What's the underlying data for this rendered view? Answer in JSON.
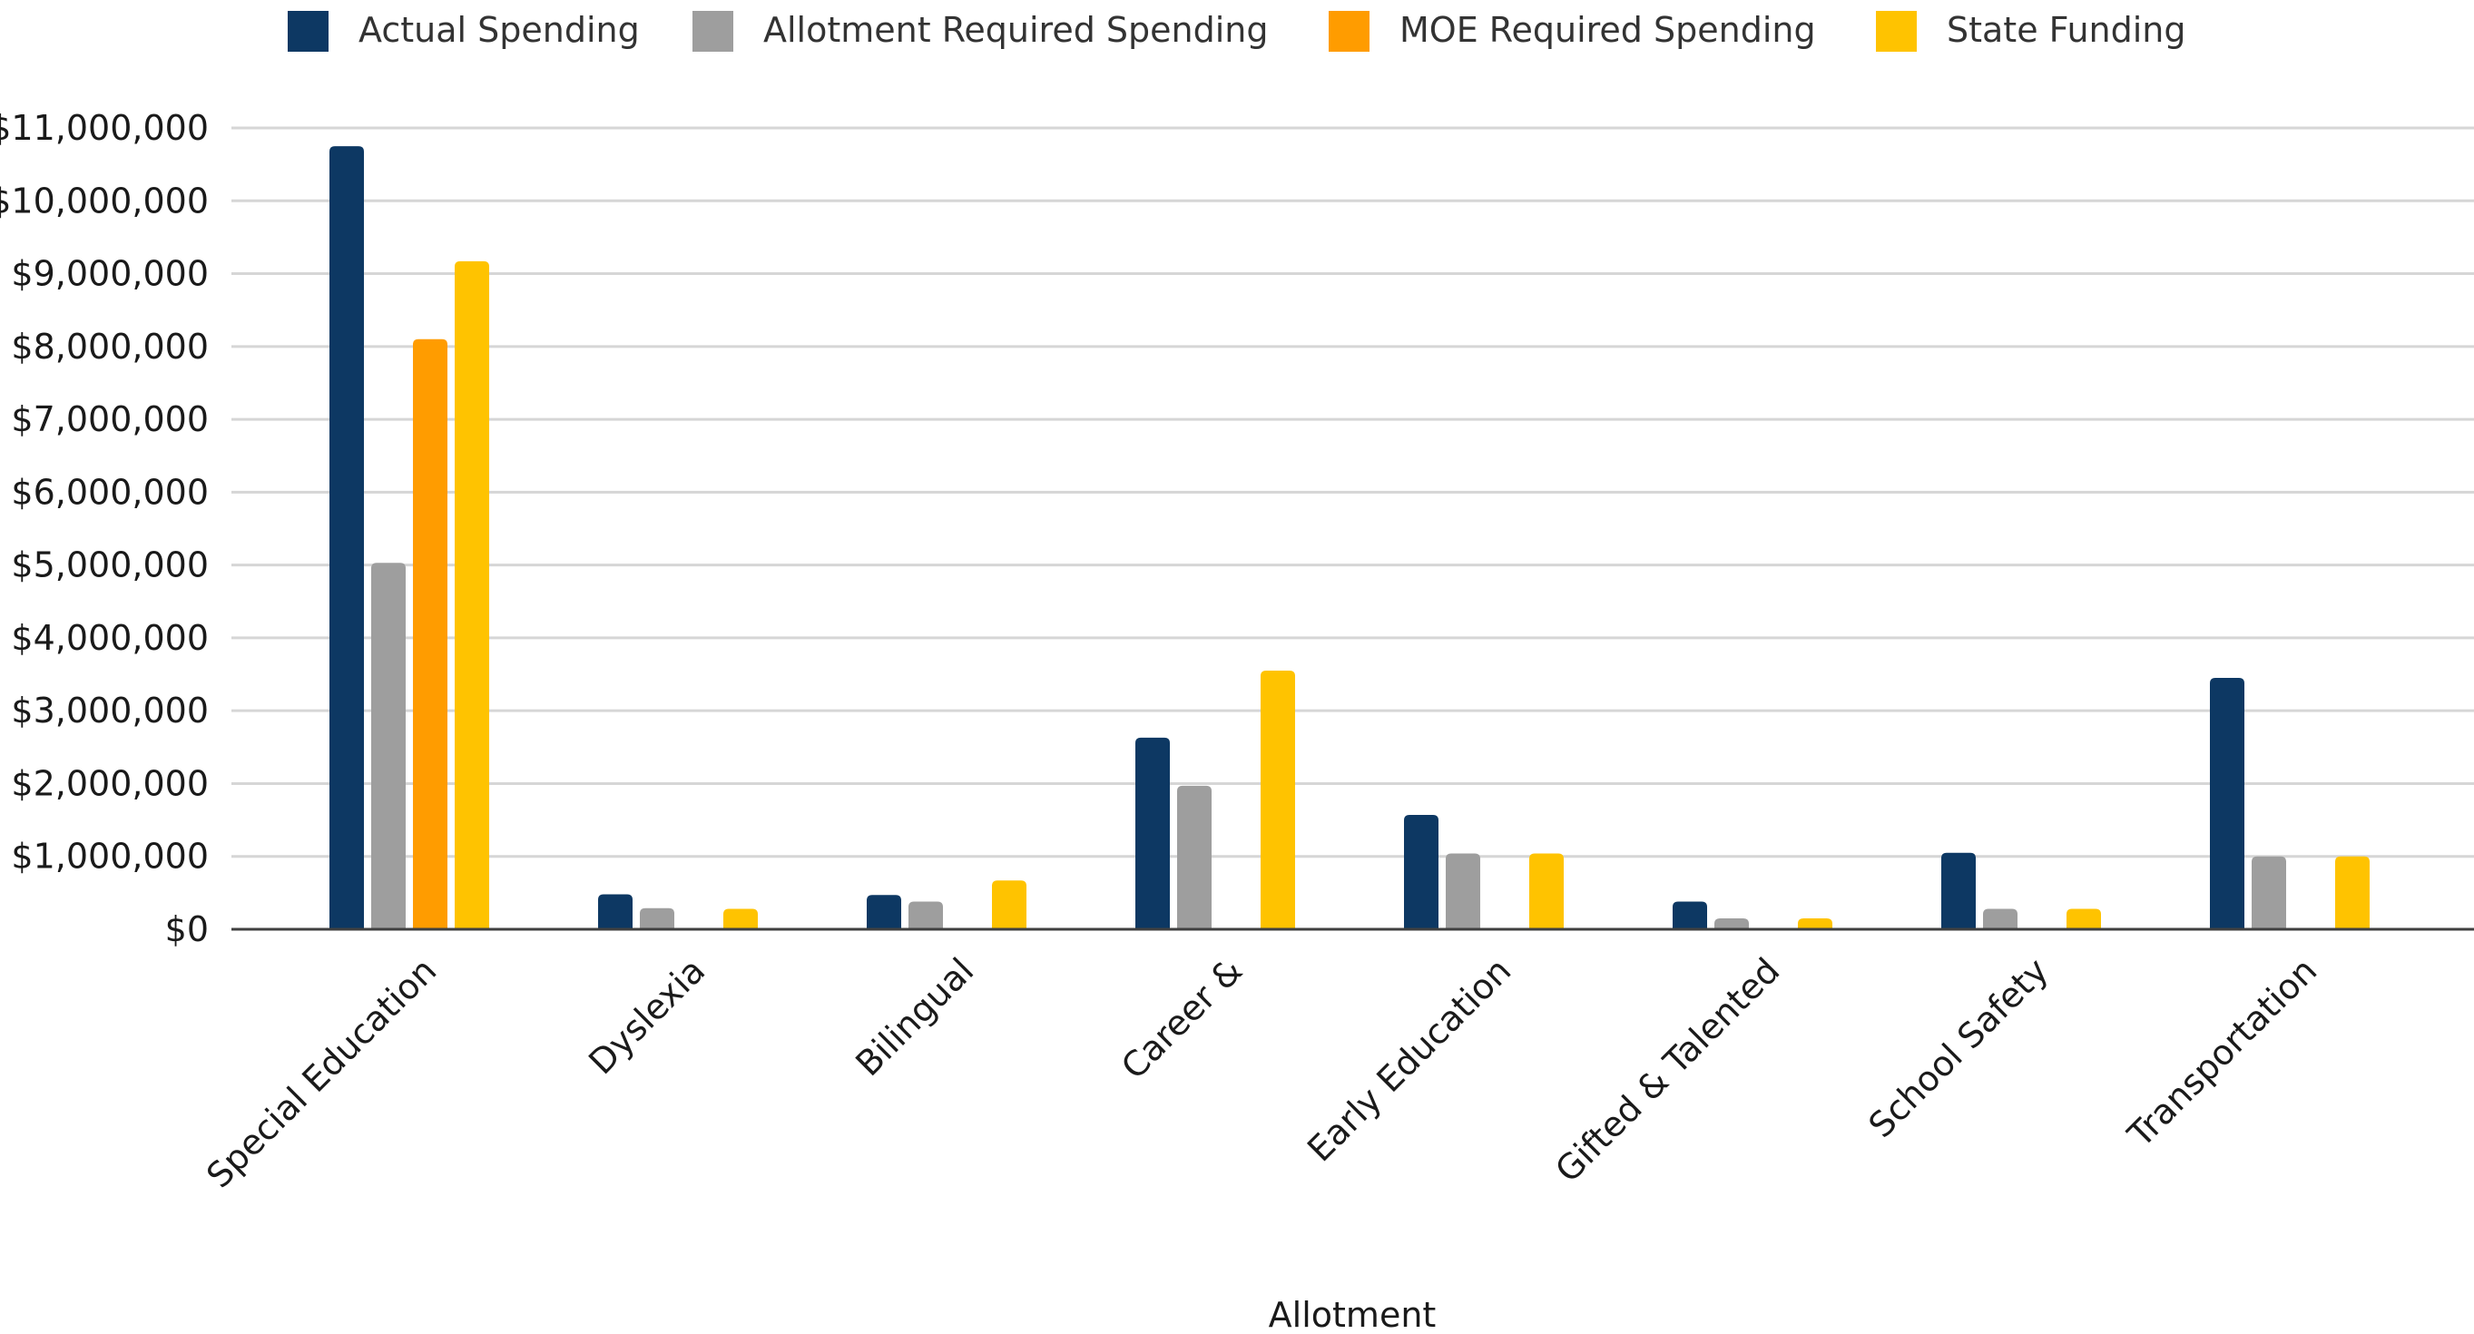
{
  "chart_data": {
    "type": "bar",
    "title": "",
    "xlabel": "Allotment",
    "ylabel": "",
    "ylim": [
      0,
      11000000
    ],
    "y_ticks": [
      {
        "value": 0,
        "label": "$0"
      },
      {
        "value": 1000000,
        "label": "$1,000,000"
      },
      {
        "value": 2000000,
        "label": "$2,000,000"
      },
      {
        "value": 3000000,
        "label": "$3,000,000"
      },
      {
        "value": 4000000,
        "label": "$4,000,000"
      },
      {
        "value": 5000000,
        "label": "$5,000,000"
      },
      {
        "value": 6000000,
        "label": "$6,000,000"
      },
      {
        "value": 7000000,
        "label": "$7,000,000"
      },
      {
        "value": 8000000,
        "label": "$8,000,000"
      },
      {
        "value": 9000000,
        "label": "$9,000,000"
      },
      {
        "value": 10000000,
        "label": "$10,000,000"
      },
      {
        "value": 11000000,
        "label": "$11,000,000"
      }
    ],
    "grid": true,
    "legend_position": "top",
    "categories": [
      "Special Education",
      "Dyslexia",
      "Bilingual",
      "Career &",
      "Early Education",
      "Gifted & Talented",
      "School Safety",
      "Transportation"
    ],
    "series": [
      {
        "name": "Actual Spending",
        "color": "#0D3863",
        "values": [
          10750000,
          480000,
          470000,
          2630000,
          1570000,
          380000,
          1050000,
          3450000
        ]
      },
      {
        "name": "Allotment Required Spending",
        "color": "#9E9E9E",
        "values": [
          5030000,
          290000,
          380000,
          1970000,
          1040000,
          150000,
          280000,
          1000000
        ]
      },
      {
        "name": "MOE Required Spending",
        "color": "#FF9C00",
        "values": [
          8100000,
          null,
          null,
          null,
          null,
          null,
          null,
          null
        ]
      },
      {
        "name": "State Funding",
        "color": "#FFC300",
        "values": [
          9170000,
          280000,
          670000,
          3550000,
          1040000,
          150000,
          280000,
          1000000
        ]
      }
    ]
  }
}
